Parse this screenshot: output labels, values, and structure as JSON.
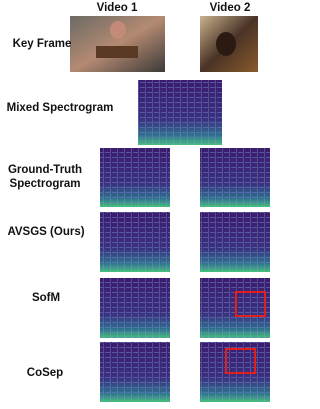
{
  "header": {
    "columns": [
      "Video 1",
      "Video 2"
    ]
  },
  "rows": [
    {
      "label": [
        "Key Frame"
      ]
    },
    {
      "label": [
        "Mixed Spectrogram"
      ]
    },
    {
      "label": [
        "Ground-Truth",
        "Spectrogram"
      ]
    },
    {
      "label": [
        "AVSGS (Ours)"
      ]
    },
    {
      "label": [
        "SofM"
      ]
    },
    {
      "label": [
        "CoSep"
      ]
    }
  ]
}
